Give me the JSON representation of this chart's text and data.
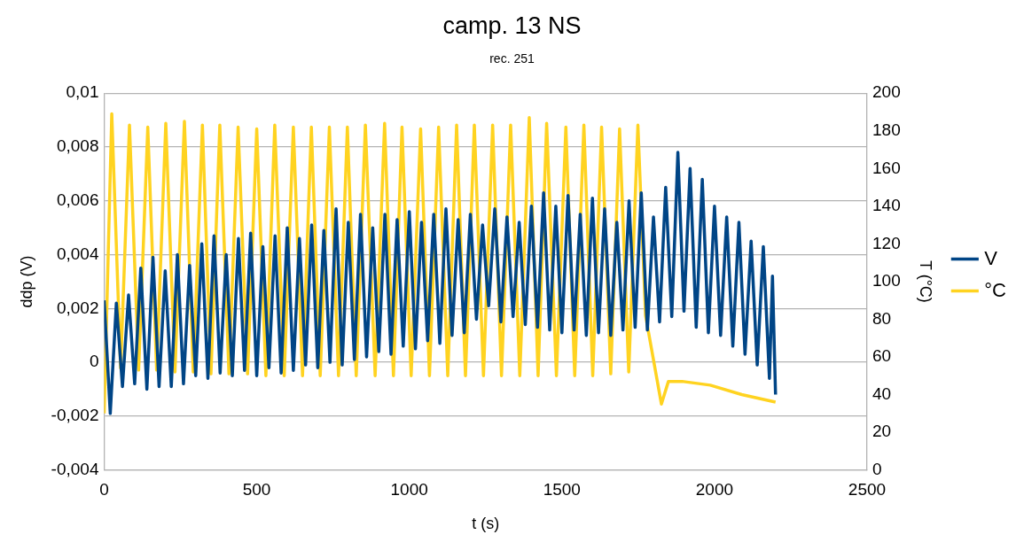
{
  "chart_data": {
    "type": "line",
    "title": "camp. 13 NS",
    "subtitle": "rec. 251",
    "xlabel": "t (s)",
    "ylabel": "ddp (V)",
    "y2label": "T (°C)",
    "xlim": [
      0,
      2500
    ],
    "xticks": [
      0,
      500,
      1000,
      1500,
      2000,
      2500
    ],
    "ylim": [
      -0.004,
      0.01
    ],
    "yticks": [
      {
        "value": -0.004,
        "label": "-0,004"
      },
      {
        "value": -0.002,
        "label": "-0,002"
      },
      {
        "value": 0,
        "label": "0"
      },
      {
        "value": 0.002,
        "label": "0,002"
      },
      {
        "value": 0.004,
        "label": "0,004"
      },
      {
        "value": 0.006,
        "label": "0,006"
      },
      {
        "value": 0.008,
        "label": "0,008"
      },
      {
        "value": 0.01,
        "label": "0,01"
      }
    ],
    "y2lim": [
      0,
      200
    ],
    "y2ticks": [
      0,
      20,
      40,
      60,
      80,
      100,
      120,
      140,
      160,
      180,
      200
    ],
    "grid": "y",
    "legend": "right",
    "marker": "none",
    "series": [
      {
        "name": "V",
        "color": "#004586",
        "x": [
          0,
          20,
          40,
          60,
          80,
          100,
          120,
          140,
          160,
          180,
          200,
          220,
          240,
          260,
          280,
          300,
          320,
          340,
          360,
          380,
          400,
          420,
          440,
          460,
          480,
          500,
          520,
          540,
          560,
          580,
          600,
          620,
          640,
          660,
          680,
          700,
          720,
          740,
          760,
          780,
          800,
          820,
          840,
          860,
          880,
          900,
          920,
          940,
          960,
          980,
          1000,
          1020,
          1040,
          1060,
          1080,
          1100,
          1120,
          1140,
          1160,
          1180,
          1200,
          1220,
          1240,
          1260,
          1280,
          1300,
          1320,
          1340,
          1360,
          1380,
          1400,
          1420,
          1440,
          1460,
          1480,
          1500,
          1520,
          1540,
          1560,
          1580,
          1600,
          1620,
          1640,
          1660,
          1680,
          1700,
          1720,
          1740,
          1760,
          1780,
          1800,
          1820,
          1840,
          1860,
          1880,
          1900,
          1920,
          1940,
          1960,
          1980,
          2000,
          2020,
          2040,
          2060,
          2080,
          2100,
          2120,
          2140,
          2160,
          2180,
          2190,
          2200
        ],
        "values": [
          0.0023,
          -0.0019,
          0.0022,
          -0.0009,
          0.0025,
          -0.0008,
          0.0035,
          -0.001,
          0.0039,
          -0.0009,
          0.0034,
          -0.0009,
          0.004,
          -0.0008,
          0.0036,
          -0.0005,
          0.0044,
          -0.0006,
          0.0047,
          -0.0004,
          0.004,
          -0.0005,
          0.0046,
          -0.0003,
          0.0048,
          -0.0005,
          0.0043,
          -0.0002,
          0.0047,
          -0.0004,
          0.005,
          -0.0003,
          0.0046,
          -0.0001,
          0.0051,
          -0.0002,
          0.0049,
          0,
          0.0057,
          -0.0001,
          0.0052,
          0.0001,
          0.0055,
          0.0002,
          0.005,
          0.0004,
          0.0055,
          0.0003,
          0.0053,
          0.0006,
          0.0056,
          0.0005,
          0.0052,
          0.0008,
          0.0055,
          0.0007,
          0.0057,
          0.001,
          0.0053,
          0.0011,
          0.0055,
          0.0016,
          0.0051,
          0.0021,
          0.0057,
          0.0015,
          0.0054,
          0.0017,
          0.0052,
          0.0014,
          0.0058,
          0.0013,
          0.0063,
          0.0012,
          0.0058,
          0.0011,
          0.0062,
          0.0012,
          0.0055,
          0.001,
          0.0061,
          0.0011,
          0.0057,
          0.001,
          0.0052,
          0.0012,
          0.006,
          0.0013,
          0.0063,
          0.0012,
          0.0054,
          0.0015,
          0.0065,
          0.0017,
          0.0078,
          0.0019,
          0.0072,
          0.0013,
          0.0068,
          0.0011,
          0.0058,
          0.001,
          0.0054,
          0.0006,
          0.0052,
          0.0003,
          0.0045,
          -0.0001,
          0.0043,
          -0.0006,
          0.0032,
          -0.0012
        ]
      },
      {
        "name": "°C",
        "color": "#ffd320",
        "axis": "y2",
        "x": [
          0,
          25,
          54,
          83,
          113,
          143,
          172,
          202,
          232,
          263,
          292,
          322,
          350,
          379,
          409,
          439,
          470,
          500,
          530,
          559,
          590,
          620,
          650,
          679,
          708,
          738,
          768,
          797,
          826,
          856,
          888,
          919,
          948,
          976,
          1006,
          1037,
          1066,
          1096,
          1126,
          1155,
          1184,
          1213,
          1243,
          1273,
          1302,
          1332,
          1362,
          1393,
          1422,
          1450,
          1482,
          1513,
          1542,
          1572,
          1601,
          1630,
          1660,
          1689,
          1719,
          1749,
          1774,
          1826,
          1849,
          1894,
          1986,
          2089,
          2200
        ],
        "values": [
          30,
          189,
          54,
          183,
          53,
          182,
          53,
          184,
          52,
          185,
          52,
          183,
          51,
          183,
          51,
          182,
          51,
          181,
          50,
          183,
          50,
          182,
          50,
          182,
          50,
          182,
          50,
          182,
          50,
          183,
          50,
          184,
          50,
          182,
          50,
          181,
          50,
          182,
          50,
          183,
          50,
          183,
          50,
          183,
          50,
          183,
          50,
          187,
          50,
          184,
          50,
          182,
          50,
          183,
          50,
          182,
          51,
          181,
          52,
          183,
          82,
          35,
          47,
          47,
          45,
          40,
          36
        ]
      }
    ]
  }
}
